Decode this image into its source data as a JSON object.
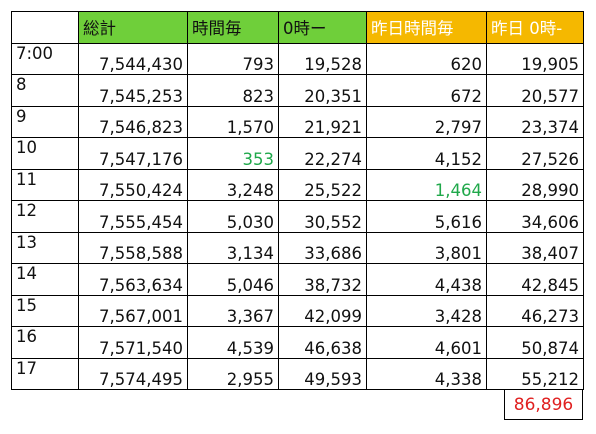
{
  "headers": [
    "",
    "総計",
    "時間毎",
    "0時ー",
    "昨日時間毎",
    "昨日 0時-"
  ],
  "header_colors": {
    "today": "#6fcf3a",
    "yesterday": "#f5b800",
    "highlight_text": "#1fa84a",
    "total_text": "#e02020"
  },
  "rows": [
    {
      "time": "7:00",
      "total": "7,544,430",
      "hourly": "793",
      "since_zero": "19,528",
      "y_hourly": "620",
      "y_since_zero": "19,905"
    },
    {
      "time": "8",
      "total": "7,545,253",
      "hourly": "823",
      "since_zero": "20,351",
      "y_hourly": "672",
      "y_since_zero": "20,577"
    },
    {
      "time": "9",
      "total": "7,546,823",
      "hourly": "1,570",
      "since_zero": "21,921",
      "y_hourly": "2,797",
      "y_since_zero": "23,374"
    },
    {
      "time": "10",
      "total": "7,547,176",
      "hourly": "353",
      "since_zero": "22,274",
      "y_hourly": "4,152",
      "y_since_zero": "27,526"
    },
    {
      "time": "11",
      "total": "7,550,424",
      "hourly": "3,248",
      "since_zero": "25,522",
      "y_hourly": "1,464",
      "y_since_zero": "28,990"
    },
    {
      "time": "12",
      "total": "7,555,454",
      "hourly": "5,030",
      "since_zero": "30,552",
      "y_hourly": "5,616",
      "y_since_zero": "34,606"
    },
    {
      "time": "13",
      "total": "7,558,588",
      "hourly": "3,134",
      "since_zero": "33,686",
      "y_hourly": "3,801",
      "y_since_zero": "38,407"
    },
    {
      "time": "14",
      "total": "7,563,634",
      "hourly": "5,046",
      "since_zero": "38,732",
      "y_hourly": "4,438",
      "y_since_zero": "42,845"
    },
    {
      "time": "15",
      "total": "7,567,001",
      "hourly": "3,367",
      "since_zero": "42,099",
      "y_hourly": "3,428",
      "y_since_zero": "46,273"
    },
    {
      "time": "16",
      "total": "7,571,540",
      "hourly": "4,539",
      "since_zero": "46,638",
      "y_hourly": "4,601",
      "y_since_zero": "50,874"
    },
    {
      "time": "17",
      "total": "7,574,495",
      "hourly": "2,955",
      "since_zero": "49,593",
      "y_hourly": "4,338",
      "y_since_zero": "55,212"
    }
  ],
  "highlights": {
    "min_hourly_row": 3,
    "min_y_hourly_row": 4
  },
  "grand_total": "86,896"
}
